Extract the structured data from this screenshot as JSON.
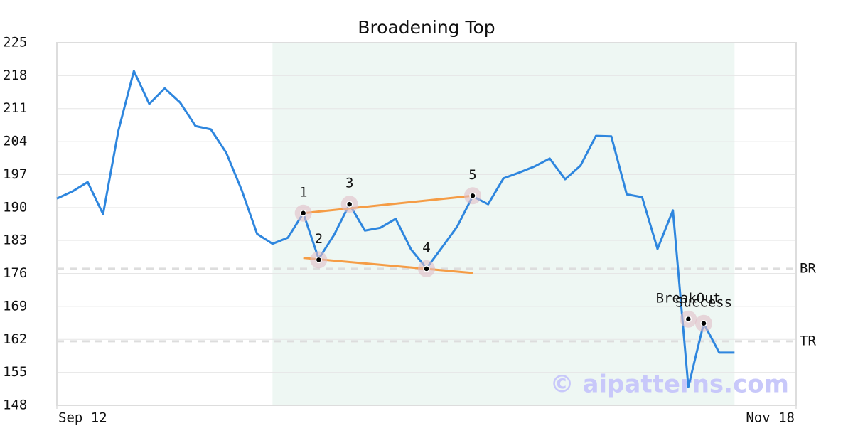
{
  "chart_data": {
    "type": "line",
    "title": "Broadening Top",
    "x": [
      0,
      1,
      2,
      3,
      4,
      5,
      6,
      7,
      8,
      9,
      10,
      11,
      12,
      13,
      14,
      15,
      16,
      17,
      18,
      19,
      20,
      21,
      22,
      23,
      24,
      25,
      26,
      27,
      28,
      29,
      30,
      31,
      32,
      33,
      34,
      35,
      36,
      37,
      38,
      39,
      40,
      41,
      42,
      43,
      44
    ],
    "series": [
      {
        "color": "#2e86de",
        "values": [
          191.9,
          193.4,
          195.4,
          188.6,
          206.4,
          219.0,
          212.0,
          215.3,
          212.3,
          207.3,
          206.6,
          201.6,
          193.7,
          184.4,
          182.3,
          183.6,
          188.8,
          179.1,
          184.2,
          190.7,
          185.1,
          185.7,
          187.6,
          181.1,
          177.1,
          181.5,
          186.0,
          192.4,
          190.7,
          196.2,
          197.4,
          198.7,
          200.4,
          196.0,
          198.9,
          205.2,
          205.1,
          192.8,
          192.2,
          181.2,
          189.4,
          151.9,
          165.4,
          159.2,
          159.2
        ]
      }
    ],
    "xlim": [
      0,
      48
    ],
    "xticks": [
      {
        "value": 0,
        "label": "Sep 12"
      },
      {
        "value": 48,
        "label": "Nov 18"
      }
    ],
    "ylim": [
      148,
      225
    ],
    "yticks": [
      148,
      155,
      162,
      169,
      176,
      183,
      190,
      197,
      204,
      211,
      218,
      225
    ],
    "grid": true,
    "highlight_xrange": [
      14,
      44
    ],
    "highlight_color": "#eef7f3",
    "levels": [
      {
        "label": "BR",
        "value": 177.0
      },
      {
        "label": "TR",
        "value": 161.6
      }
    ],
    "trendlines": [
      {
        "color": "#f59c45",
        "x": [
          16,
          27
        ],
        "y": [
          188.8,
          192.5
        ]
      },
      {
        "color": "#f59c45",
        "x": [
          16,
          27
        ],
        "y": [
          179.3,
          176.1
        ]
      }
    ],
    "markers": [
      {
        "label": "1",
        "x": 16,
        "y": 188.8
      },
      {
        "label": "2",
        "x": 17,
        "y": 178.9
      },
      {
        "label": "3",
        "x": 19,
        "y": 190.7
      },
      {
        "label": "4",
        "x": 24,
        "y": 177.0
      },
      {
        "label": "5",
        "x": 27,
        "y": 192.5
      },
      {
        "label": "BreakOut",
        "x": 41,
        "y": 166.3
      },
      {
        "label": "Success",
        "x": 42,
        "y": 165.4
      }
    ],
    "watermark": "© aipatterns.com"
  }
}
